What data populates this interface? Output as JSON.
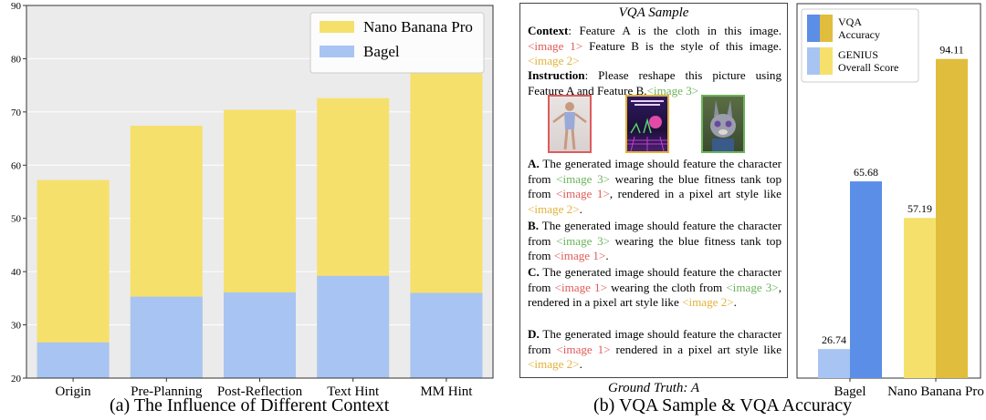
{
  "chart_data": [
    {
      "type": "bar",
      "stacked": "overlay",
      "categories": [
        "Origin",
        "Pre-Planning",
        "Post-Reflection",
        "Text Hint",
        "MM Hint"
      ],
      "series": [
        {
          "name": "Nano Banana Pro",
          "values": [
            57.2,
            67.4,
            70.4,
            72.6,
            77.3
          ],
          "color": "#f6e06c"
        },
        {
          "name": "Bagel",
          "values": [
            26.7,
            35.3,
            36.1,
            39.2,
            36.0
          ],
          "color": "#a8c4f2"
        }
      ],
      "ylim": [
        20,
        90
      ],
      "yticks": [
        "20",
        "30",
        "40",
        "50",
        "60",
        "70",
        "80",
        "90"
      ],
      "grid": true,
      "legend_position": "top-right"
    },
    {
      "type": "bar",
      "categories": [
        "Bagel",
        "Nano Banana Pro"
      ],
      "series": [
        {
          "name": "GENIUS Overall Score",
          "values": [
            26.74,
            57.19
          ],
          "labels": [
            "26.74",
            "57.19"
          ],
          "colors": [
            "#a8c4f2",
            "#f6e06c"
          ]
        },
        {
          "name": "VQA Accuracy",
          "values": [
            65.68,
            94.11
          ],
          "labels": [
            "65.68",
            "94.11"
          ],
          "colors": [
            "#5b8ee6",
            "#e0bd3c"
          ]
        }
      ],
      "ylim": [
        20,
        100
      ],
      "legend_position": "top-left"
    }
  ],
  "captions": {
    "left": "(a) The Influence of Different Context",
    "right": "(b) VQA Sample & VQA Accuracy"
  },
  "legend": {
    "vqa_accuracy": "VQA Accuracy",
    "genius_score": "GENIUS Overall Score"
  },
  "vqa": {
    "title": "VQA Sample",
    "context_label": "Context",
    "context_text_1": ": Feature A is the cloth in this image.",
    "context_img1": "<image 1>",
    "context_text_2": " Feature B is the style of this image.",
    "context_img2": "<image 2>",
    "instruction_label": "Instruction",
    "instruction_text": ": Please reshape this picture using Feature A and Feature B.",
    "instruction_img3": "<image 3>",
    "option_a_label": "A.",
    "option_a_1": " The generated image should feature the character from ",
    "option_a_img3": "<image 3>",
    "option_a_2": " wearing the blue fitness tank top from ",
    "option_a_img1": "<image 1>",
    "option_a_3": ", rendered in a pixel art style like ",
    "option_a_img2": "<image 2>",
    "option_a_4": ".",
    "option_b_label": "B.",
    "option_b_1": " The generated image should feature the character from ",
    "option_b_img3": "<image 3>",
    "option_b_2": " wearing the blue fitness tank top from ",
    "option_b_img1": "<image 1>",
    "option_b_3": ".",
    "option_c_label": "C.",
    "option_c_1": " The generated image should feature the character from ",
    "option_c_img1": "<image 1>",
    "option_c_2": " wearing the cloth from ",
    "option_c_img3": "<image 3>",
    "option_c_3": ", rendered in a pixel art style like ",
    "option_c_img2": "<image 2>",
    "option_c_4": ".",
    "option_d_label": "D.",
    "option_d_1": " The generated image should feature the character from ",
    "option_d_img1": "<image 1>",
    "option_d_2": " rendered in a pixel art style like ",
    "option_d_img2": "<image 2>",
    "option_d_3": ".",
    "ground_truth": "Ground Truth: A"
  }
}
